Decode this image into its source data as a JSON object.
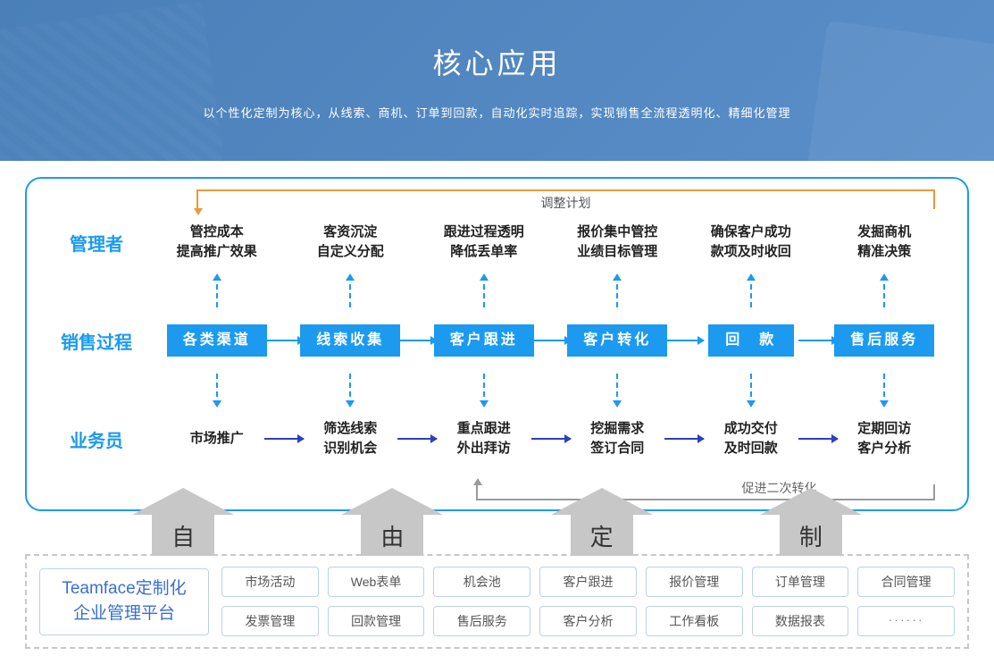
{
  "hero": {
    "title": "核心应用",
    "subtitle": "以个性化定制为核心，从线索、商机、订单到回款，自动化实时追踪，实现销售全流程透明化、精细化管理"
  },
  "colors": {
    "hero_bg_from": "#4a7fb8",
    "hero_bg_to": "#5b8fc9",
    "primary": "#1b9af0",
    "biz_arrow": "#2d3fbf",
    "loop_top": "#e89a3b",
    "loop_bottom": "#9a9a9a",
    "grey_arrow": "#c7c7c7",
    "mod_border": "#bcd0ea",
    "platform_text": "#3a6fd0"
  },
  "flow": {
    "rows": {
      "manager": {
        "label": "管理者",
        "items": [
          {
            "l1": "管控成本",
            "l2": "提高推广效果"
          },
          {
            "l1": "客资沉淀",
            "l2": "自定义分配"
          },
          {
            "l1": "跟进过程透明",
            "l2": "降低丢单率"
          },
          {
            "l1": "报价集中管控",
            "l2": "业绩目标管理"
          },
          {
            "l1": "确保客户成功",
            "l2": "款项及时收回"
          },
          {
            "l1": "发掘商机",
            "l2": "精准决策"
          }
        ]
      },
      "sales": {
        "label": "销售过程",
        "stages": [
          "各类渠道",
          "线索收集",
          "客户跟进",
          "客户转化",
          "回　款",
          "售后服务"
        ]
      },
      "staff": {
        "label": "业务员",
        "items": [
          {
            "l1": "市场推广",
            "l2": ""
          },
          {
            "l1": "筛选线索",
            "l2": "识别机会"
          },
          {
            "l1": "重点跟进",
            "l2": "外出拜访"
          },
          {
            "l1": "挖掘需求",
            "l2": "签订合同"
          },
          {
            "l1": "成功交付",
            "l2": "及时回款"
          },
          {
            "l1": "定期回访",
            "l2": "客户分析"
          }
        ]
      }
    },
    "loop_top_label": "调整计划",
    "loop_bottom_label": "促进二次转化"
  },
  "big_arrows": [
    "自",
    "由",
    "定",
    "制"
  ],
  "platform": {
    "l1": "Teamface定制化",
    "l2": "企业管理平台"
  },
  "modules": [
    "市场活动",
    "Web表单",
    "机会池",
    "客户跟进",
    "报价管理",
    "订单管理",
    "合同管理",
    "发票管理",
    "回款管理",
    "售后服务",
    "客户分析",
    "工作看板",
    "数据报表",
    "······"
  ]
}
